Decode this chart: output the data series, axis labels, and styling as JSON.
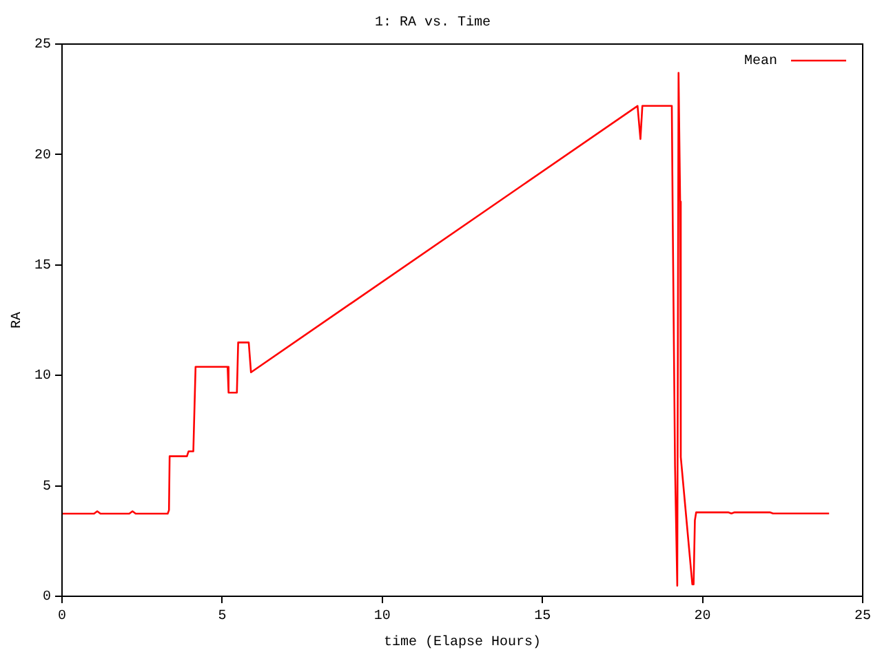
{
  "chart_data": {
    "type": "line",
    "title": "1: RA vs. Time",
    "xlabel": "time (Elapse Hours)",
    "ylabel": "RA",
    "legend": "top right",
    "grid": false,
    "marker": "none",
    "line_style": "solid",
    "xlim": [
      0,
      25
    ],
    "xticks": [
      0,
      5,
      10,
      15,
      20,
      25
    ],
    "ylim": [
      0,
      25
    ],
    "yticks": [
      0,
      5,
      10,
      15,
      20,
      25
    ],
    "series": [
      {
        "name": "Mean",
        "color": "#ff0000",
        "x": [
          0,
          1.0,
          1.1,
          1.2,
          2.1,
          2.2,
          2.3,
          3.3,
          3.34,
          3.36,
          3.9,
          3.95,
          4.1,
          4.17,
          4.2,
          5.17,
          5.2,
          5.46,
          5.5,
          5.83,
          5.9,
          17.97,
          18.06,
          18.12,
          19.04,
          19.07,
          19.14,
          19.21,
          19.25,
          19.3,
          19.32,
          19.68,
          19.72,
          19.76,
          19.8,
          20.8,
          20.9,
          21.0,
          22.1,
          22.2,
          23.95
        ],
        "values": [
          3.74,
          3.74,
          3.85,
          3.74,
          3.74,
          3.85,
          3.74,
          3.74,
          3.9,
          6.34,
          6.34,
          6.56,
          6.56,
          10.39,
          10.39,
          10.39,
          9.22,
          9.22,
          11.49,
          11.49,
          10.14,
          22.2,
          20.7,
          22.2,
          22.2,
          16.8,
          5.9,
          0.48,
          23.7,
          17.87,
          6.3,
          0.54,
          0.54,
          3.44,
          3.8,
          3.8,
          3.75,
          3.8,
          3.8,
          3.75,
          3.75
        ]
      }
    ]
  }
}
